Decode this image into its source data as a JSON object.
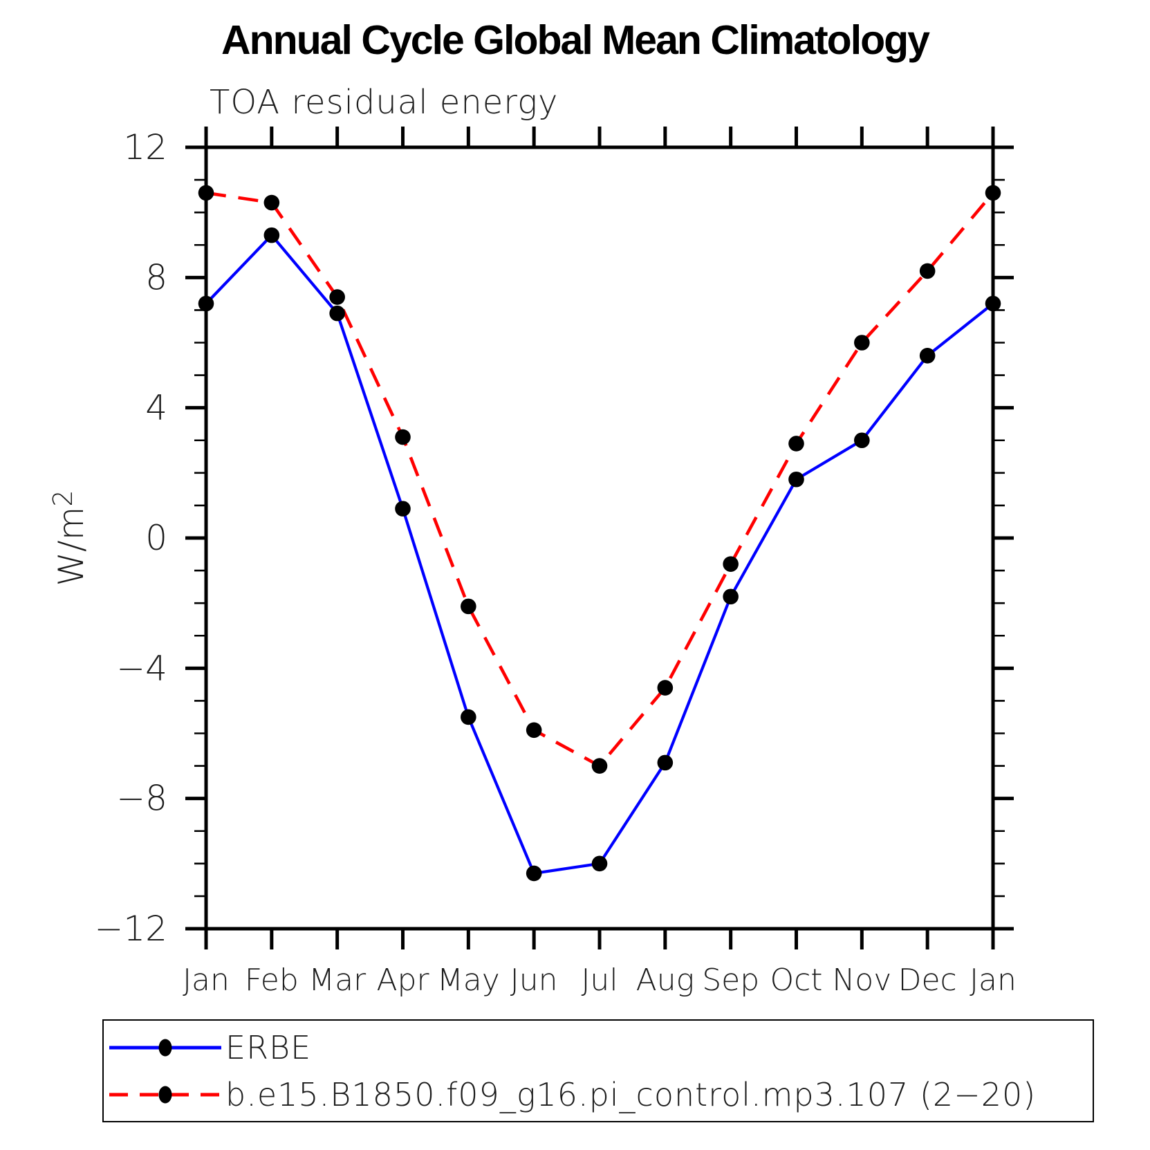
{
  "title": "Annual Cycle Global Mean Climatology",
  "subtitle": "TOA residual energy",
  "chart_data": {
    "type": "line",
    "title": "Annual Cycle Global Mean Climatology",
    "subtitle": "TOA residual energy",
    "x_categories": [
      "Jan",
      "Feb",
      "Mar",
      "Apr",
      "May",
      "Jun",
      "Jul",
      "Aug",
      "Sep",
      "Oct",
      "Nov",
      "Dec",
      "Jan"
    ],
    "ylabel": "W/m",
    "ylabel_superscript": "2",
    "ylim": [
      -12,
      12
    ],
    "yticks": [
      12,
      8,
      4,
      0,
      -4,
      -8,
      -12
    ],
    "ytick_major_interval": 4,
    "ytick_minor_interval": 1,
    "grid": false,
    "legend_position": "bottom-left-box",
    "marker_color": "#000000",
    "series": [
      {
        "name": "ERBE",
        "color": "#0000ff",
        "style": "solid",
        "marker": "filled-circle",
        "values": [
          7.2,
          9.3,
          6.9,
          0.9,
          -5.5,
          -10.3,
          -10.0,
          -6.9,
          -1.8,
          1.8,
          3.0,
          5.6,
          7.2
        ]
      },
      {
        "name": "b.e15.B1850.f09_g16.pi_control.mp3.107 (2−20)",
        "color": "#ff0000",
        "style": "dashed",
        "marker": "filled-circle",
        "values": [
          10.6,
          10.3,
          7.4,
          3.1,
          -2.1,
          -5.9,
          -7.0,
          -4.6,
          -0.8,
          2.9,
          6.0,
          8.2,
          10.6
        ]
      }
    ]
  }
}
